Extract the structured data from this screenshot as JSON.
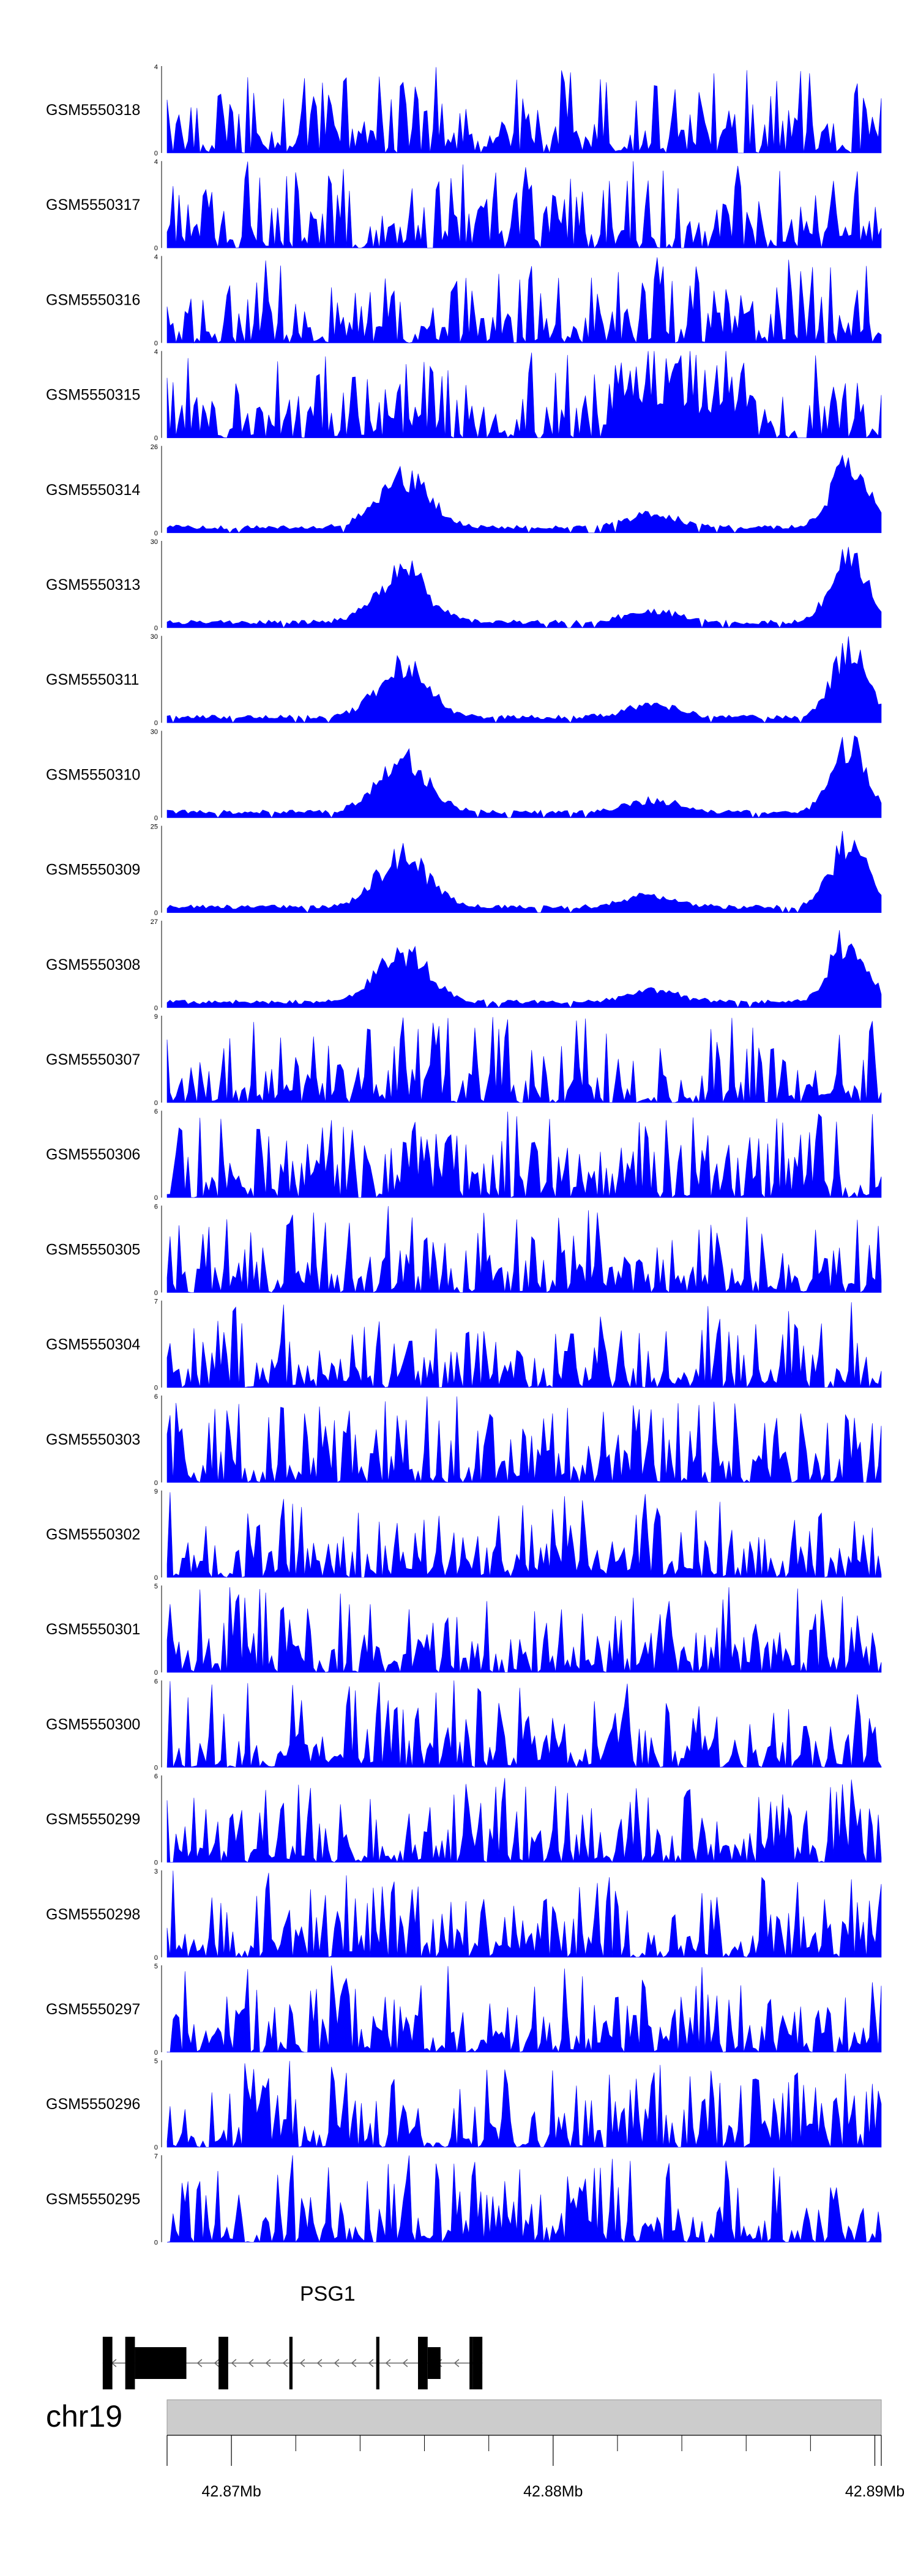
{
  "chart_data": {
    "type": "area",
    "tracks": [
      {
        "name": "GSM5550318",
        "ymin": "0",
        "ymax": "4",
        "max": 4
      },
      {
        "name": "GSM5550317",
        "ymin": "0",
        "ymax": "4",
        "max": 4
      },
      {
        "name": "GSM5550316",
        "ymin": "0",
        "ymax": "4",
        "max": 4
      },
      {
        "name": "GSM5550315",
        "ymin": "0",
        "ymax": "4",
        "max": 4
      },
      {
        "name": "GSM5550314",
        "ymin": "0",
        "ymax": "26",
        "max": 26
      },
      {
        "name": "GSM5550313",
        "ymin": "0",
        "ymax": "30",
        "max": 30
      },
      {
        "name": "GSM5550311",
        "ymin": "0",
        "ymax": "30",
        "max": 30
      },
      {
        "name": "GSM5550310",
        "ymin": "0",
        "ymax": "30",
        "max": 30
      },
      {
        "name": "GSM5550309",
        "ymin": "0",
        "ymax": "25",
        "max": 25
      },
      {
        "name": "GSM5550308",
        "ymin": "0",
        "ymax": "27",
        "max": 27
      },
      {
        "name": "GSM5550307",
        "ymin": "0",
        "ymax": "9",
        "max": 9
      },
      {
        "name": "GSM5550306",
        "ymin": "0",
        "ymax": "6",
        "max": 6
      },
      {
        "name": "GSM5550305",
        "ymin": "0",
        "ymax": "6",
        "max": 6
      },
      {
        "name": "GSM5550304",
        "ymin": "0",
        "ymax": "7",
        "max": 7
      },
      {
        "name": "GSM5550303",
        "ymin": "0",
        "ymax": "6",
        "max": 6
      },
      {
        "name": "GSM5550302",
        "ymin": "0",
        "ymax": "9",
        "max": 9
      },
      {
        "name": "GSM5550301",
        "ymin": "0",
        "ymax": "5",
        "max": 5
      },
      {
        "name": "GSM5550300",
        "ymin": "0",
        "ymax": "6",
        "max": 6
      },
      {
        "name": "GSM5550299",
        "ymin": "0",
        "ymax": "6",
        "max": 6
      },
      {
        "name": "GSM5550298",
        "ymin": "0",
        "ymax": "3",
        "max": 3
      },
      {
        "name": "GSM5550297",
        "ymin": "0",
        "ymax": "5",
        "max": 5
      },
      {
        "name": "GSM5550296",
        "ymin": "0",
        "ymax": "5",
        "max": 5
      },
      {
        "name": "GSM5550295",
        "ymin": "0",
        "ymax": "7",
        "max": 7
      }
    ],
    "gene": {
      "name": "PSG1",
      "strand": "-",
      "start_mb": 42.866,
      "end_mb": 42.8778,
      "exons_mb": [
        [
          42.866,
          42.8663
        ],
        [
          42.8667,
          42.867
        ],
        [
          42.867,
          42.8686
        ],
        [
          42.8696,
          42.8699
        ],
        [
          42.8718,
          42.8719
        ],
        [
          42.8745,
          42.8746
        ],
        [
          42.8758,
          42.8761
        ],
        [
          42.8761,
          42.8765
        ],
        [
          42.8774,
          42.8775
        ],
        [
          42.8775,
          42.8778
        ]
      ]
    },
    "genome_axis": {
      "chromosome": "chr19",
      "xlim_mb": [
        42.868,
        42.8902
      ],
      "tick_labels": [
        {
          "label": "42.87Mb",
          "value": 42.87
        },
        {
          "label": "42.88Mb",
          "value": 42.88
        },
        {
          "label": "42.89Mb",
          "value": 42.89
        }
      ],
      "minor_ticks_mb": [
        42.872,
        42.874,
        42.876,
        42.878,
        42.882,
        42.884,
        42.886,
        42.888
      ]
    },
    "fill_color": "#0000ff",
    "ideogram_color": "#cccccc"
  }
}
